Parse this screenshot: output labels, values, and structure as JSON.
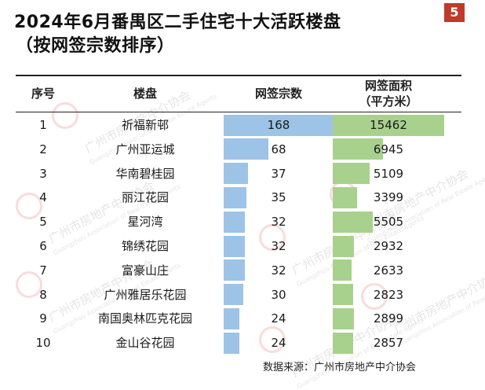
{
  "page_badge": "5",
  "title": {
    "line1": "2024年6月番禺区二手住宅十大活跃楼盘",
    "line2": "（按网签宗数排序）"
  },
  "table": {
    "headers": {
      "seq": "序号",
      "name": "楼盘",
      "count": "网签宗数",
      "area_line1": "网签面积",
      "area_line2": "（平方米）"
    }
  },
  "chart_data": {
    "type": "table",
    "title": "2024年6月番禺区二手住宅十大活跃楼盘",
    "subtitle": "（按网签宗数排序）",
    "columns": [
      "序号",
      "楼盘",
      "网签宗数",
      "网签面积（平方米）"
    ],
    "rows": [
      {
        "seq": "1",
        "name": "祈福新邨",
        "count": 168,
        "area": 15462
      },
      {
        "seq": "2",
        "name": "广州亚运城",
        "count": 68,
        "area": 6945
      },
      {
        "seq": "3",
        "name": "华南碧桂园",
        "count": 37,
        "area": 5109
      },
      {
        "seq": "4",
        "name": "丽江花园",
        "count": 35,
        "area": 3399
      },
      {
        "seq": "5",
        "name": "星河湾",
        "count": 32,
        "area": 5505
      },
      {
        "seq": "6",
        "name": "锦绣花园",
        "count": 32,
        "area": 2932
      },
      {
        "seq": "7",
        "name": "富豪山庄",
        "count": 32,
        "area": 2633
      },
      {
        "seq": "8",
        "name": "广州雅居乐花园",
        "count": 30,
        "area": 2823
      },
      {
        "seq": "9",
        "name": "南国奥林匹克花园",
        "count": 24,
        "area": 2899
      },
      {
        "seq": "10",
        "name": "金山谷花园",
        "count": 24,
        "area": 2857
      }
    ],
    "bar_colors": {
      "count": "#9dc3e6",
      "area": "#a9d18e"
    }
  },
  "source": "数据来源：广州市房地产中介协会",
  "watermark": {
    "text_cn": "广州市房地产中介协会",
    "text_en": "Guangzhou Association of Real Estate Agents"
  }
}
